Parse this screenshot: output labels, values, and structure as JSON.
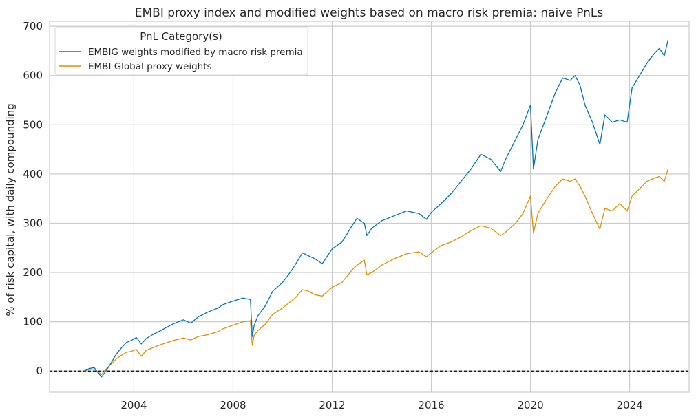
{
  "chart_data": {
    "type": "line",
    "title": "EMBI proxy index and modified weights based on macro risk premia: naive PnLs",
    "xlabel": "",
    "ylabel": "% of risk capital, with daily compounding",
    "xlim": [
      2000.6,
      2026.4
    ],
    "ylim": [
      -43,
      710
    ],
    "x_ticks": [
      2004,
      2008,
      2012,
      2016,
      2020,
      2024
    ],
    "x_tick_labels": [
      "2004",
      "2008",
      "2012",
      "2016",
      "2020",
      "2024"
    ],
    "y_ticks": [
      0,
      100,
      200,
      300,
      400,
      500,
      600,
      700
    ],
    "y_tick_labels": [
      "0",
      "100",
      "200",
      "300",
      "400",
      "500",
      "600",
      "700"
    ],
    "grid": true,
    "zero_line": {
      "value": 0,
      "style": "dashed",
      "color": "#000000"
    },
    "legend": {
      "title": "PnL Category(s)",
      "placement": "top-left"
    },
    "series": [
      {
        "name": "EMBIG weights modified by macro risk premia",
        "color": "#0173b2",
        "points": [
          [
            2002.0,
            0
          ],
          [
            2002.2,
            5
          ],
          [
            2002.4,
            7
          ],
          [
            2002.55,
            -3
          ],
          [
            2002.7,
            -12
          ],
          [
            2002.9,
            2
          ],
          [
            2003.1,
            18
          ],
          [
            2003.3,
            35
          ],
          [
            2003.5,
            47
          ],
          [
            2003.7,
            58
          ],
          [
            2003.9,
            62
          ],
          [
            2004.1,
            68
          ],
          [
            2004.3,
            55
          ],
          [
            2004.5,
            66
          ],
          [
            2004.8,
            75
          ],
          [
            2005.0,
            80
          ],
          [
            2005.3,
            88
          ],
          [
            2005.6,
            96
          ],
          [
            2006.0,
            104
          ],
          [
            2006.3,
            97
          ],
          [
            2006.6,
            110
          ],
          [
            2007.0,
            120
          ],
          [
            2007.4,
            128
          ],
          [
            2007.6,
            135
          ],
          [
            2008.0,
            142
          ],
          [
            2008.4,
            148
          ],
          [
            2008.7,
            145
          ],
          [
            2008.78,
            70
          ],
          [
            2008.85,
            92
          ],
          [
            2009.0,
            112
          ],
          [
            2009.3,
            132
          ],
          [
            2009.6,
            162
          ],
          [
            2010.0,
            180
          ],
          [
            2010.3,
            200
          ],
          [
            2010.5,
            215
          ],
          [
            2010.8,
            240
          ],
          [
            2011.0,
            235
          ],
          [
            2011.3,
            228
          ],
          [
            2011.6,
            218
          ],
          [
            2012.0,
            248
          ],
          [
            2012.4,
            262
          ],
          [
            2012.8,
            295
          ],
          [
            2013.0,
            310
          ],
          [
            2013.3,
            300
          ],
          [
            2013.4,
            275
          ],
          [
            2013.6,
            290
          ],
          [
            2014.0,
            305
          ],
          [
            2014.5,
            315
          ],
          [
            2015.0,
            325
          ],
          [
            2015.5,
            320
          ],
          [
            2015.8,
            308
          ],
          [
            2016.0,
            322
          ],
          [
            2016.4,
            340
          ],
          [
            2016.8,
            360
          ],
          [
            2017.2,
            385
          ],
          [
            2017.6,
            410
          ],
          [
            2018.0,
            440
          ],
          [
            2018.4,
            430
          ],
          [
            2018.8,
            405
          ],
          [
            2019.0,
            430
          ],
          [
            2019.4,
            470
          ],
          [
            2019.7,
            500
          ],
          [
            2020.0,
            540
          ],
          [
            2020.12,
            410
          ],
          [
            2020.3,
            470
          ],
          [
            2020.6,
            510
          ],
          [
            2021.0,
            565
          ],
          [
            2021.3,
            595
          ],
          [
            2021.6,
            590
          ],
          [
            2021.8,
            600
          ],
          [
            2022.0,
            580
          ],
          [
            2022.2,
            540
          ],
          [
            2022.5,
            505
          ],
          [
            2022.8,
            460
          ],
          [
            2023.0,
            520
          ],
          [
            2023.3,
            505
          ],
          [
            2023.6,
            510
          ],
          [
            2023.9,
            505
          ],
          [
            2024.1,
            575
          ],
          [
            2024.4,
            600
          ],
          [
            2024.7,
            625
          ],
          [
            2025.0,
            645
          ],
          [
            2025.2,
            655
          ],
          [
            2025.4,
            640
          ],
          [
            2025.55,
            672
          ]
        ]
      },
      {
        "name": "EMBI Global proxy weights",
        "color": "#de8f05",
        "points": [
          [
            2002.0,
            0
          ],
          [
            2002.2,
            3
          ],
          [
            2002.4,
            4
          ],
          [
            2002.55,
            -2
          ],
          [
            2002.7,
            -7
          ],
          [
            2002.9,
            5
          ],
          [
            2003.1,
            15
          ],
          [
            2003.3,
            25
          ],
          [
            2003.5,
            32
          ],
          [
            2003.7,
            38
          ],
          [
            2003.9,
            40
          ],
          [
            2004.1,
            44
          ],
          [
            2004.3,
            30
          ],
          [
            2004.5,
            42
          ],
          [
            2004.8,
            48
          ],
          [
            2005.0,
            52
          ],
          [
            2005.3,
            57
          ],
          [
            2005.6,
            62
          ],
          [
            2006.0,
            67
          ],
          [
            2006.3,
            63
          ],
          [
            2006.6,
            70
          ],
          [
            2007.0,
            74
          ],
          [
            2007.4,
            80
          ],
          [
            2007.6,
            86
          ],
          [
            2008.0,
            93
          ],
          [
            2008.4,
            100
          ],
          [
            2008.7,
            102
          ],
          [
            2008.78,
            52
          ],
          [
            2008.85,
            72
          ],
          [
            2009.0,
            82
          ],
          [
            2009.3,
            95
          ],
          [
            2009.6,
            115
          ],
          [
            2010.0,
            128
          ],
          [
            2010.3,
            140
          ],
          [
            2010.5,
            148
          ],
          [
            2010.8,
            165
          ],
          [
            2011.0,
            163
          ],
          [
            2011.3,
            155
          ],
          [
            2011.6,
            152
          ],
          [
            2012.0,
            170
          ],
          [
            2012.4,
            180
          ],
          [
            2012.8,
            205
          ],
          [
            2013.0,
            215
          ],
          [
            2013.3,
            225
          ],
          [
            2013.4,
            195
          ],
          [
            2013.6,
            200
          ],
          [
            2014.0,
            215
          ],
          [
            2014.5,
            228
          ],
          [
            2015.0,
            238
          ],
          [
            2015.5,
            242
          ],
          [
            2015.8,
            232
          ],
          [
            2016.0,
            240
          ],
          [
            2016.4,
            255
          ],
          [
            2016.8,
            262
          ],
          [
            2017.2,
            272
          ],
          [
            2017.6,
            285
          ],
          [
            2018.0,
            295
          ],
          [
            2018.4,
            290
          ],
          [
            2018.8,
            275
          ],
          [
            2019.0,
            282
          ],
          [
            2019.4,
            300
          ],
          [
            2019.7,
            320
          ],
          [
            2020.0,
            355
          ],
          [
            2020.12,
            280
          ],
          [
            2020.3,
            320
          ],
          [
            2020.6,
            345
          ],
          [
            2021.0,
            375
          ],
          [
            2021.3,
            390
          ],
          [
            2021.6,
            385
          ],
          [
            2021.8,
            390
          ],
          [
            2022.0,
            375
          ],
          [
            2022.2,
            355
          ],
          [
            2022.5,
            320
          ],
          [
            2022.8,
            288
          ],
          [
            2023.0,
            330
          ],
          [
            2023.3,
            325
          ],
          [
            2023.6,
            340
          ],
          [
            2023.9,
            325
          ],
          [
            2024.1,
            355
          ],
          [
            2024.4,
            370
          ],
          [
            2024.7,
            385
          ],
          [
            2025.0,
            392
          ],
          [
            2025.2,
            395
          ],
          [
            2025.4,
            385
          ],
          [
            2025.55,
            410
          ]
        ]
      }
    ]
  }
}
